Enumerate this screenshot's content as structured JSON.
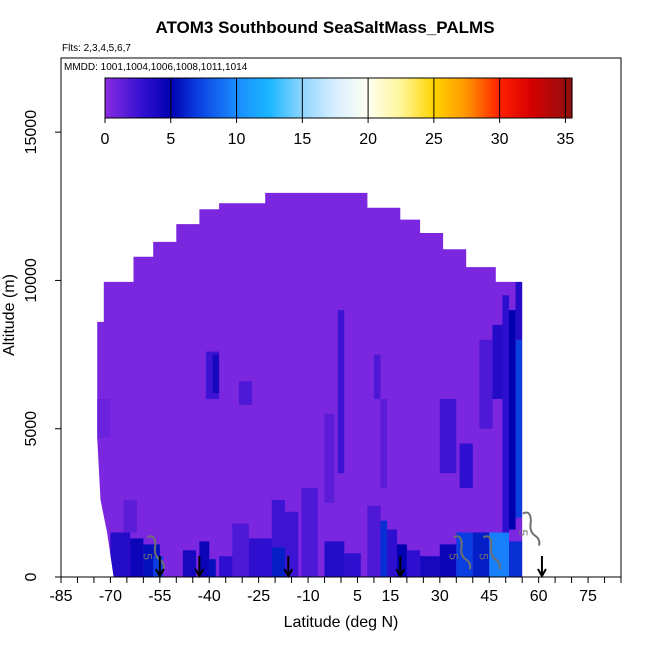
{
  "chart_data": {
    "type": "heatmap",
    "title": "ATOM3 Southbound SeaSaltMass_PALMS",
    "annotations": {
      "flights": "Flts: 2,3,4,5,6,7",
      "dates": "MMDD: 1001,1004,1006,1008,1011,1014"
    },
    "xlabel": "Latitude (deg N)",
    "ylabel": "Altitude (m)",
    "xlim": [
      -85,
      85
    ],
    "ylim": [
      0,
      17500
    ],
    "x_ticks": [
      -85,
      -70,
      -55,
      -40,
      -25,
      -10,
      5,
      15,
      30,
      45,
      60,
      75
    ],
    "x_minor_step": 5,
    "y_ticks": [
      0,
      5000,
      10000,
      15000
    ],
    "colorbar": {
      "min": 0,
      "max": 35.5,
      "ticks": [
        0,
        5,
        10,
        15,
        20,
        25,
        30,
        35
      ],
      "stops": [
        {
          "v": 0,
          "color": "#8a2be2"
        },
        {
          "v": 3,
          "color": "#2e0fd0"
        },
        {
          "v": 5,
          "color": "#0000b0"
        },
        {
          "v": 7,
          "color": "#0a3ee0"
        },
        {
          "v": 10,
          "color": "#1a8cff"
        },
        {
          "v": 12.5,
          "color": "#1ab6ff"
        },
        {
          "v": 15,
          "color": "#8fd6ff"
        },
        {
          "v": 17.5,
          "color": "#d8eeff"
        },
        {
          "v": 20,
          "color": "#fffff0"
        },
        {
          "v": 22.5,
          "color": "#fff59a"
        },
        {
          "v": 25,
          "color": "#ffd400"
        },
        {
          "v": 27.5,
          "color": "#ff9500"
        },
        {
          "v": 30,
          "color": "#ff2000"
        },
        {
          "v": 32.5,
          "color": "#d40000"
        },
        {
          "v": 35.5,
          "color": "#8c1010"
        }
      ]
    },
    "background_value": 0.5,
    "envelope": [
      [
        -72,
        9950
      ],
      [
        -63,
        9950
      ],
      [
        -63,
        10800
      ],
      [
        -57,
        10800
      ],
      [
        -57,
        11300
      ],
      [
        -50,
        11300
      ],
      [
        -50,
        11900
      ],
      [
        -43,
        11900
      ],
      [
        -43,
        12400
      ],
      [
        -37,
        12400
      ],
      [
        -37,
        12600
      ],
      [
        -23,
        12600
      ],
      [
        -23,
        12950
      ],
      [
        8,
        12950
      ],
      [
        8,
        12450
      ],
      [
        18,
        12450
      ],
      [
        18,
        12050
      ],
      [
        24,
        12050
      ],
      [
        24,
        11600
      ],
      [
        31,
        11600
      ],
      [
        31,
        11050
      ],
      [
        38,
        11050
      ],
      [
        38,
        10450
      ],
      [
        47,
        10450
      ],
      [
        47,
        9950
      ],
      [
        55,
        9950
      ],
      [
        55,
        0
      ],
      [
        -69,
        0
      ],
      [
        -71,
        1500
      ],
      [
        -73,
        2600
      ],
      [
        -74,
        4700
      ],
      [
        -74,
        8600
      ],
      [
        -72,
        8600
      ]
    ],
    "cells": [
      {
        "x": [
          -70,
          -64
        ],
        "y": [
          0,
          1500
        ],
        "v": 3.5
      },
      {
        "x": [
          -64,
          -60
        ],
        "y": [
          0,
          1300
        ],
        "v": 4.5
      },
      {
        "x": [
          -60,
          -55
        ],
        "y": [
          0,
          1100
        ],
        "v": 5.5
      },
      {
        "x": [
          -57,
          -54
        ],
        "y": [
          0,
          700
        ],
        "v": 7
      },
      {
        "x": [
          -48,
          -44
        ],
        "y": [
          0,
          900
        ],
        "v": 4
      },
      {
        "x": [
          -43,
          -40
        ],
        "y": [
          0,
          1200
        ],
        "v": 4.5
      },
      {
        "x": [
          -40,
          -38
        ],
        "y": [
          0,
          600
        ],
        "v": 5.5
      },
      {
        "x": [
          -37,
          -30
        ],
        "y": [
          0,
          700
        ],
        "v": 3
      },
      {
        "x": [
          -33,
          -28
        ],
        "y": [
          0,
          1800
        ],
        "v": 2
      },
      {
        "x": [
          -28,
          -20
        ],
        "y": [
          0,
          1300
        ],
        "v": 3
      },
      {
        "x": [
          -21,
          -17
        ],
        "y": [
          0,
          1000
        ],
        "v": 6
      },
      {
        "x": [
          -17,
          -13
        ],
        "y": [
          0,
          2200
        ],
        "v": 2.5
      },
      {
        "x": [
          -12,
          -7
        ],
        "y": [
          0,
          3000
        ],
        "v": 2
      },
      {
        "x": [
          -5,
          1
        ],
        "y": [
          0,
          1200
        ],
        "v": 3.5
      },
      {
        "x": [
          1,
          6
        ],
        "y": [
          0,
          800
        ],
        "v": 3
      },
      {
        "x": [
          8,
          12
        ],
        "y": [
          0,
          2400
        ],
        "v": 2
      },
      {
        "x": [
          12,
          14
        ],
        "y": [
          0,
          1900
        ],
        "v": 6.5
      },
      {
        "x": [
          14,
          17
        ],
        "y": [
          0,
          1600
        ],
        "v": 3
      },
      {
        "x": [
          17,
          20
        ],
        "y": [
          0,
          1100
        ],
        "v": 5
      },
      {
        "x": [
          20,
          24
        ],
        "y": [
          0,
          900
        ],
        "v": 3
      },
      {
        "x": [
          24,
          30
        ],
        "y": [
          0,
          700
        ],
        "v": 4
      },
      {
        "x": [
          30,
          35
        ],
        "y": [
          0,
          1100
        ],
        "v": 4.5
      },
      {
        "x": [
          35,
          40
        ],
        "y": [
          0,
          1500
        ],
        "v": 7
      },
      {
        "x": [
          40,
          45
        ],
        "y": [
          0,
          1500
        ],
        "v": 6
      },
      {
        "x": [
          45,
          51
        ],
        "y": [
          0,
          1500
        ],
        "v": 9.5
      },
      {
        "x": [
          51,
          55
        ],
        "y": [
          0,
          1200
        ],
        "v": 6.5
      },
      {
        "x": [
          -41,
          -37
        ],
        "y": [
          6000,
          7600
        ],
        "v": 2.5
      },
      {
        "x": [
          -39,
          -37
        ],
        "y": [
          6200,
          7500
        ],
        "v": 4
      },
      {
        "x": [
          -31,
          -27
        ],
        "y": [
          5800,
          6600
        ],
        "v": 2
      },
      {
        "x": [
          -1,
          1
        ],
        "y": [
          3500,
          9000
        ],
        "v": 2.5
      },
      {
        "x": [
          -5,
          -2
        ],
        "y": [
          2500,
          5500
        ],
        "v": 1.5
      },
      {
        "x": [
          10,
          12
        ],
        "y": [
          6000,
          7500
        ],
        "v": 2
      },
      {
        "x": [
          12,
          14
        ],
        "y": [
          3000,
          6000
        ],
        "v": 1.5
      },
      {
        "x": [
          30,
          35
        ],
        "y": [
          3500,
          6000
        ],
        "v": 2.5
      },
      {
        "x": [
          36,
          40
        ],
        "y": [
          3000,
          4500
        ],
        "v": 3
      },
      {
        "x": [
          42,
          46
        ],
        "y": [
          5000,
          8000
        ],
        "v": 2
      },
      {
        "x": [
          46,
          50
        ],
        "y": [
          6000,
          8500
        ],
        "v": 3.5
      },
      {
        "x": [
          49,
          51
        ],
        "y": [
          1500,
          9500
        ],
        "v": 3
      },
      {
        "x": [
          51,
          53
        ],
        "y": [
          1600,
          9000
        ],
        "v": 5
      },
      {
        "x": [
          53,
          55
        ],
        "y": [
          2000,
          8000
        ],
        "v": 7
      },
      {
        "x": [
          53,
          55
        ],
        "y": [
          8000,
          9950
        ],
        "v": 3.5
      },
      {
        "x": [
          -66,
          -62
        ],
        "y": [
          1500,
          2600
        ],
        "v": 1.5
      },
      {
        "x": [
          -21,
          -17
        ],
        "y": [
          1000,
          2600
        ],
        "v": 2.5
      },
      {
        "x": [
          -74,
          -70
        ],
        "y": [
          4700,
          6000
        ],
        "v": 1
      }
    ],
    "contour_labels": [
      {
        "x": -60,
        "y": 800,
        "text": "5"
      },
      {
        "x": 33,
        "y": 800,
        "text": "5"
      },
      {
        "x": 42,
        "y": 800,
        "text": "5"
      },
      {
        "x": 54,
        "y": 1600,
        "text": "5"
      }
    ],
    "flight_markers": [
      -55,
      -43,
      -16,
      18,
      61
    ],
    "colors": {
      "contour": "#707070",
      "frame": "#000000",
      "marker": "#000000"
    }
  }
}
